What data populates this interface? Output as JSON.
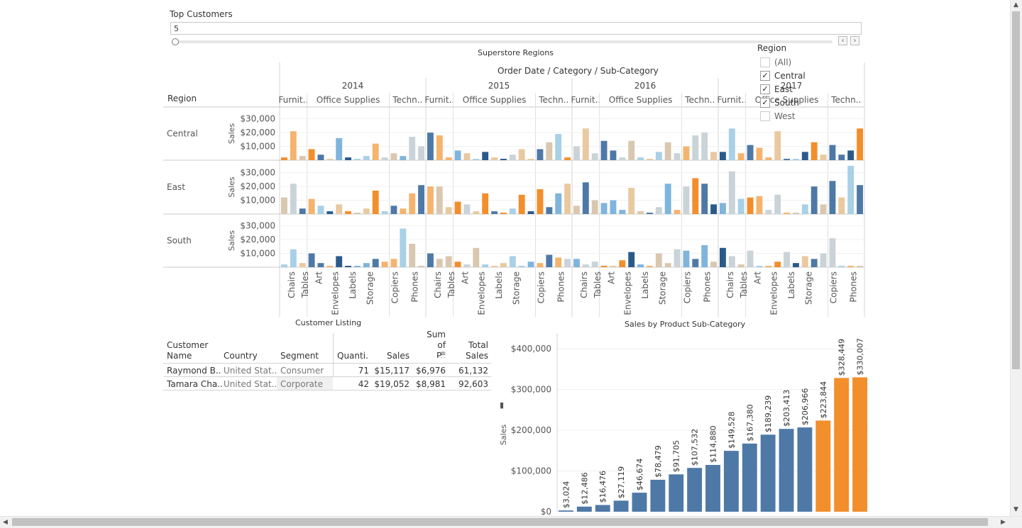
{
  "top_customers": {
    "label": "Top Customers",
    "value": "5"
  },
  "superstore": {
    "title": "Superstore Regions",
    "col_header": "Order Date / Category / Sub-Category",
    "region_header": "Region",
    "years": [
      "2014",
      "2015",
      "2016",
      "2017"
    ],
    "categories": [
      [
        "Furnit..",
        "Office Supplies",
        "Techn.."
      ],
      [
        "Furnit..",
        "Office Supplies",
        "Techn.."
      ],
      [
        "Furnit..",
        "Office Supplies",
        "Techn.."
      ],
      [
        "Furnit..",
        "Office Supplies",
        "Techn.."
      ]
    ],
    "subcategories": [
      "Chairs",
      "Tables",
      "Art",
      "Envelopes",
      "Labels",
      "Storage",
      "Copiers",
      "Phones"
    ],
    "regions": [
      "Central",
      "East",
      "South"
    ],
    "measure": "Sales",
    "y_ticks": [
      "$30,000",
      "$20,000",
      "$10,000"
    ]
  },
  "region_filter": {
    "title": "Region",
    "items": [
      {
        "label": "(All)",
        "checked": false
      },
      {
        "label": "Central",
        "checked": true
      },
      {
        "label": "East",
        "checked": true
      },
      {
        "label": "South",
        "checked": true
      },
      {
        "label": "West",
        "checked": false
      }
    ]
  },
  "customer_listing": {
    "title": "Customer Listing",
    "headers": [
      "Customer Name",
      "Country",
      "Segment",
      "Quanti..",
      "Sales",
      "Sum of P..",
      "Total Sales"
    ],
    "rows": [
      [
        "Raymond B..",
        "United Stat..",
        "Consumer",
        "71",
        "$15,117",
        "$6,976",
        "61,132"
      ],
      [
        "Tamara Cha..",
        "United Stat..",
        "Corporate",
        "42",
        "$19,052",
        "$8,981",
        "92,603"
      ]
    ]
  },
  "chart_data": {
    "type": "bar",
    "title": "Sales by Product Sub-Category",
    "ylabel": "Sales",
    "ylim": [
      0,
      430000
    ],
    "y_ticks": [
      "$0",
      "$100,000",
      "$200,000",
      "$300,000",
      "$400,000"
    ],
    "values": [
      3024,
      12486,
      16476,
      27119,
      46674,
      78479,
      91705,
      107532,
      114880,
      149528,
      167380,
      189239,
      203413,
      206966,
      223844,
      328449,
      330007
    ],
    "labels": [
      "$3,024",
      "$12,486",
      "$16,476",
      "$27,119",
      "$46,674",
      "$78,479",
      "$91,705",
      "$107,532",
      "$114,880",
      "$149,528",
      "$167,380",
      "$189,239",
      "$203,413",
      "$206,966",
      "$223,844",
      "$328,449",
      "$330,007"
    ],
    "highlight_count": 3,
    "colors": {
      "base": "#4e79a7",
      "highlight": "#f28e2b"
    }
  },
  "matrix_chart": {
    "type": "bar",
    "palette": [
      "#e8c9a0",
      "#f5b36e",
      "#f28e2b",
      "#a8d0e6",
      "#7fb4dc",
      "#4e79a7",
      "#2a5a8a",
      "#c9d3d8",
      "#d9c7b0"
    ],
    "values": {
      "Central": [
        [
          2,
          21,
          3,
          8,
          4,
          1,
          16,
          2,
          1,
          3,
          12,
          2,
          5,
          3,
          17,
          10
        ],
        [
          20,
          18,
          2,
          7,
          5,
          1,
          6,
          2,
          1,
          4,
          8,
          1,
          8,
          13,
          19,
          2
        ],
        [
          10,
          23,
          5,
          14,
          7,
          2,
          14,
          2,
          1,
          6,
          13,
          5,
          10,
          18,
          20,
          6
        ],
        [
          6,
          23,
          5,
          11,
          9,
          2,
          21,
          1,
          1,
          6,
          13,
          4,
          11,
          4,
          7,
          23
        ]
      ],
      "East": [
        [
          12,
          22,
          4,
          11,
          6,
          2,
          7,
          2,
          1,
          4,
          17,
          2,
          6,
          4,
          15,
          21
        ],
        [
          20,
          20,
          5,
          9,
          7,
          2,
          15,
          2,
          1,
          4,
          14,
          2,
          18,
          5,
          15,
          22
        ],
        [
          6,
          23,
          10,
          8,
          10,
          3,
          19,
          2,
          1,
          5,
          22,
          3,
          20,
          26,
          22,
          7
        ],
        [
          8,
          31,
          11,
          12,
          13,
          3,
          14,
          1,
          1,
          7,
          20,
          7,
          24,
          12,
          35,
          21
        ]
      ],
      "South": [
        [
          2,
          13,
          3,
          10,
          3,
          1,
          8,
          1,
          1,
          3,
          6,
          4,
          6,
          28,
          17,
          1
        ],
        [
          10,
          6,
          8,
          4,
          2,
          14,
          2,
          1,
          3,
          8,
          1,
          4,
          3,
          9,
          7,
          6
        ],
        [
          6,
          2,
          4,
          1,
          1,
          5,
          11,
          2,
          1,
          10,
          3,
          13,
          12,
          6,
          16,
          4
        ],
        [
          14,
          8,
          2,
          12,
          1,
          1,
          4,
          11,
          3,
          8,
          6,
          10,
          21,
          1,
          1,
          1
        ]
      ]
    }
  }
}
